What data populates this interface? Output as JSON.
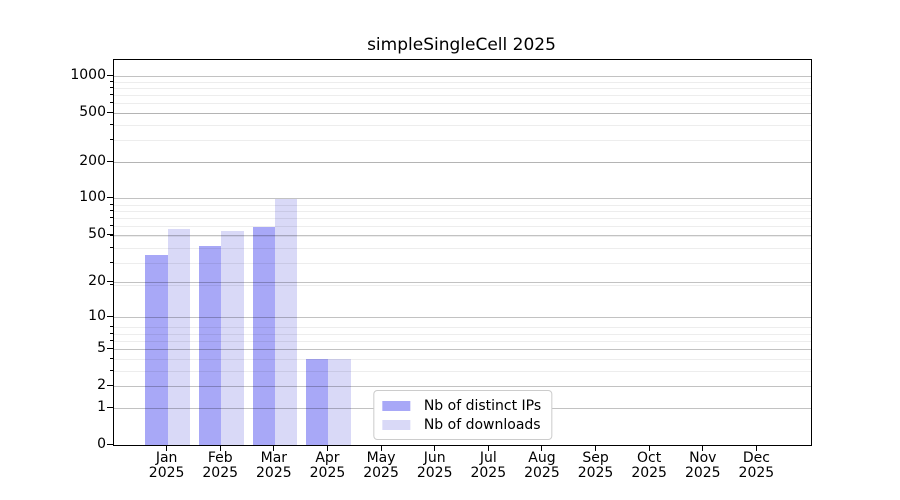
{
  "chart_data": {
    "type": "bar",
    "title": "simpleSingleCell 2025",
    "categories": [
      "Jan",
      "Feb",
      "Mar",
      "Apr",
      "May",
      "Jun",
      "Jul",
      "Aug",
      "Sep",
      "Oct",
      "Nov",
      "Dec"
    ],
    "year_label": "2025",
    "series": [
      {
        "name": "Nb of distinct IPs",
        "color": "#a8a8f7",
        "values": [
          34,
          41,
          59,
          4,
          0,
          0,
          0,
          0,
          0,
          0,
          0,
          0
        ]
      },
      {
        "name": "Nb of downloads",
        "color": "#d9d9f7",
        "values": [
          56,
          54,
          100,
          4,
          0,
          0,
          0,
          0,
          0,
          0,
          0,
          0
        ]
      }
    ],
    "yscale": "log1p",
    "yticks": [
      1000,
      500,
      200,
      100,
      50,
      20,
      10,
      5,
      2,
      1,
      0
    ],
    "ylim": [
      0,
      1340
    ],
    "grid": true,
    "legend_position": "lower center",
    "colors": {
      "axis": "#000000",
      "grid_major": "rgba(0,0,0,0.24)",
      "grid_minor": "rgba(0,0,0,0.07)",
      "legend_border": "#cccccc",
      "background": "#ffffff"
    }
  }
}
